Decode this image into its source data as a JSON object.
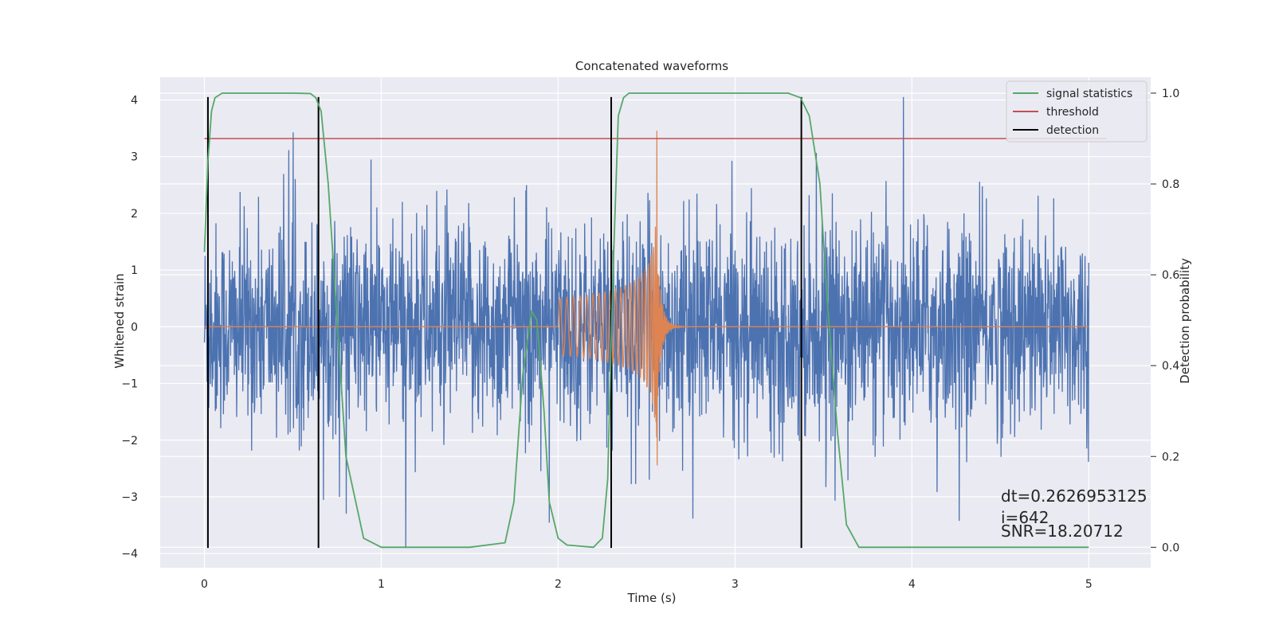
{
  "chart_data": {
    "type": "line",
    "title": "Concatenated waveforms",
    "xlabel": "Time (s)",
    "ylabel": "Whitened strain",
    "y2label": "Detection probability",
    "xlim": [
      -0.25,
      5.35
    ],
    "ylim": [
      -4.25,
      4.4
    ],
    "y2lim": [
      -0.045,
      1.035
    ],
    "xticks": [
      "0",
      "1",
      "2",
      "3",
      "4",
      "5"
    ],
    "yticks": [
      "−4",
      "−3",
      "−2",
      "−1",
      "0",
      "1",
      "2",
      "3",
      "4"
    ],
    "y2ticks": [
      "0.0",
      "0.2",
      "0.4",
      "0.6",
      "0.8",
      "1.0"
    ],
    "grid": true,
    "legend_position": "top-right",
    "colors": {
      "strain": "#4c72b0",
      "template": "#dd8452",
      "statistics": "#55a868",
      "threshold": "#c44e52",
      "detection": "#000000",
      "background": "#eaeaf2",
      "grid": "#ffffff"
    },
    "series": [
      {
        "name": "",
        "description_axis": "left",
        "kind": "whitened strain noise",
        "x_range": [
          0,
          5
        ],
        "typical_abs_amplitude": 0.9,
        "peak_max": 4.05,
        "peak_min": -3.9
      },
      {
        "name": "",
        "description_axis": "left",
        "kind": "chirp template",
        "x_range": [
          0,
          5
        ],
        "start": 2.0,
        "merger": 2.56,
        "peak_max": 3.95,
        "peak_min": -2.6
      },
      {
        "name": "signal statistics",
        "axis": "right",
        "x": [
          0,
          0.02,
          0.04,
          0.06,
          0.1,
          0.2,
          0.5,
          0.6,
          0.63,
          0.66,
          0.7,
          0.75,
          0.8,
          0.9,
          1.0,
          1.5,
          1.7,
          1.75,
          1.8,
          1.85,
          1.88,
          1.92,
          1.95,
          2.0,
          2.05,
          2.2,
          2.25,
          2.28,
          2.31,
          2.34,
          2.37,
          2.4,
          2.5,
          3.3,
          3.37,
          3.42,
          3.48,
          3.52,
          3.58,
          3.63,
          3.7,
          4.0,
          4.5,
          5.0
        ],
        "y": [
          0.65,
          0.85,
          0.96,
          0.99,
          1.0,
          1.0,
          1.0,
          0.999,
          0.99,
          0.96,
          0.8,
          0.5,
          0.2,
          0.02,
          0.0,
          0.0,
          0.01,
          0.1,
          0.38,
          0.52,
          0.5,
          0.3,
          0.1,
          0.02,
          0.005,
          0.0,
          0.02,
          0.15,
          0.6,
          0.95,
          0.99,
          1.0,
          1.0,
          1.0,
          0.99,
          0.95,
          0.8,
          0.55,
          0.25,
          0.05,
          0.0,
          0.0,
          0.0,
          0.0
        ]
      },
      {
        "name": "threshold",
        "axis": "right",
        "x": [
          0,
          5.1
        ],
        "y": [
          0.9,
          0.9
        ]
      }
    ],
    "detections": {
      "name": "detection",
      "x": [
        0.02,
        0.645,
        2.3,
        3.375
      ],
      "ymin": -3.9,
      "ymax": 4.05
    },
    "legend": [
      "signal statistics",
      "threshold",
      "detection"
    ],
    "annotations": [
      "dt=0.2626953125",
      " i=642",
      "SNR=18.20712"
    ]
  }
}
